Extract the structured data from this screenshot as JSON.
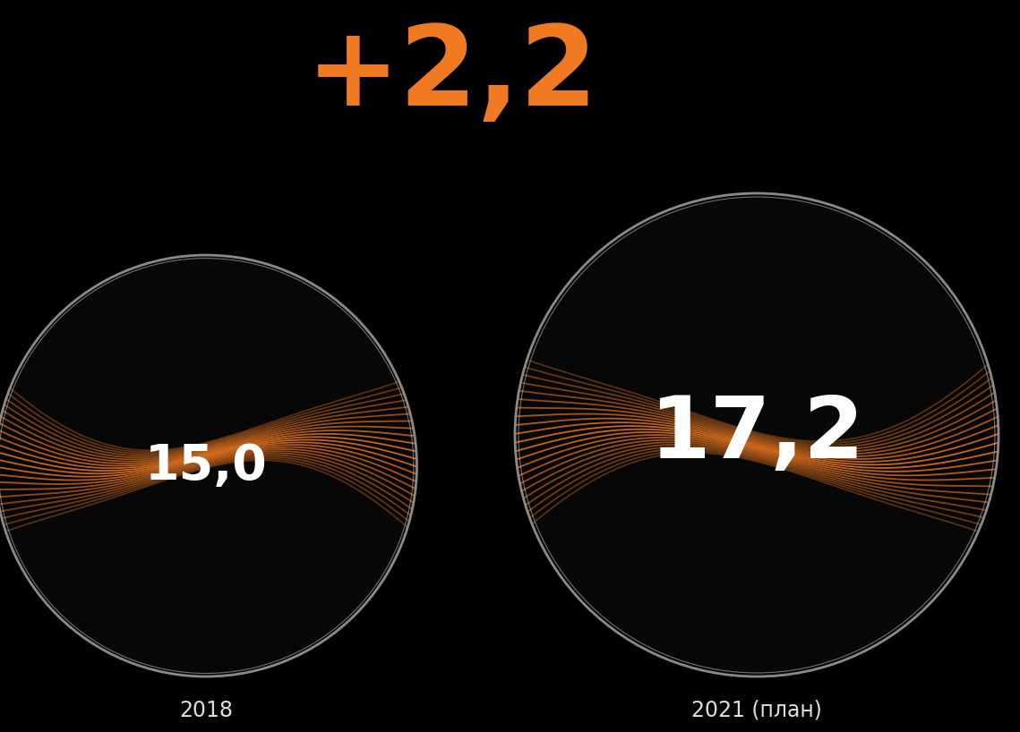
{
  "chart_data": {
    "type": "bubble",
    "annotations": [
      "+2,2"
    ],
    "categories": [
      "2018",
      "2021 (план)"
    ],
    "values": [
      15.0,
      17.2
    ],
    "value_labels": [
      "15,0",
      "17,2"
    ],
    "data_labels": true,
    "tick_labels": false,
    "color": "#f07a22"
  }
}
